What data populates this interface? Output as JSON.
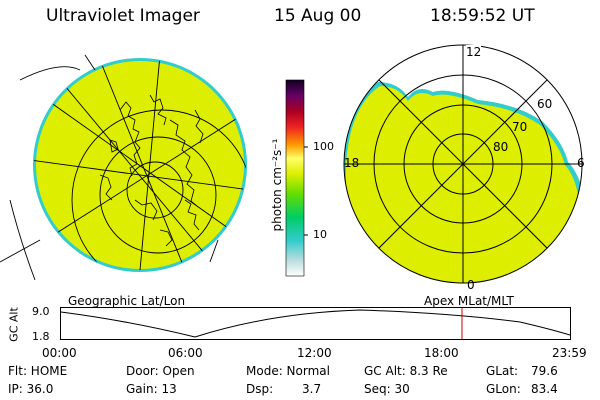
{
  "header": {
    "title": "Ultraviolet Imager",
    "date": "15 Aug 00",
    "time": "18:59:52 UT"
  },
  "colorbar": {
    "unit_label": "photon cm⁻²s⁻¹",
    "tick_100": "100",
    "tick_10": "10"
  },
  "left_panel": {
    "label": "Geographic Lat/Lon",
    "fill_color": "#ddee00",
    "rim_color": "#33cccc"
  },
  "right_panel": {
    "label": "Apex MLat/MLT",
    "mlt_labels": {
      "top": "12",
      "right": "6",
      "bottom": "0",
      "left": "18"
    },
    "lat_labels": [
      "60",
      "70",
      "80"
    ]
  },
  "timeline": {
    "axis_title": "GC Alt",
    "y_ticks": [
      "9.0",
      "1.8"
    ],
    "x_ticks": [
      "00:00",
      "06:00",
      "12:00",
      "18:00",
      "23:59"
    ],
    "marker_color": "#cc0000"
  },
  "status": {
    "flt": "Flt: HOME",
    "ip": "IP: 36.0",
    "door": "Door: Open",
    "gain": "Gain: 13",
    "mode": "Mode: Normal",
    "dsp_label": "Dsp:",
    "dsp_value": "3.7",
    "gc_alt": "GC Alt: 8.3 Re",
    "seq": "Seq: 30",
    "glat_label": "GLat:",
    "glat_value": "79.6",
    "glon_label": "GLon:",
    "glon_value": "83.4"
  }
}
